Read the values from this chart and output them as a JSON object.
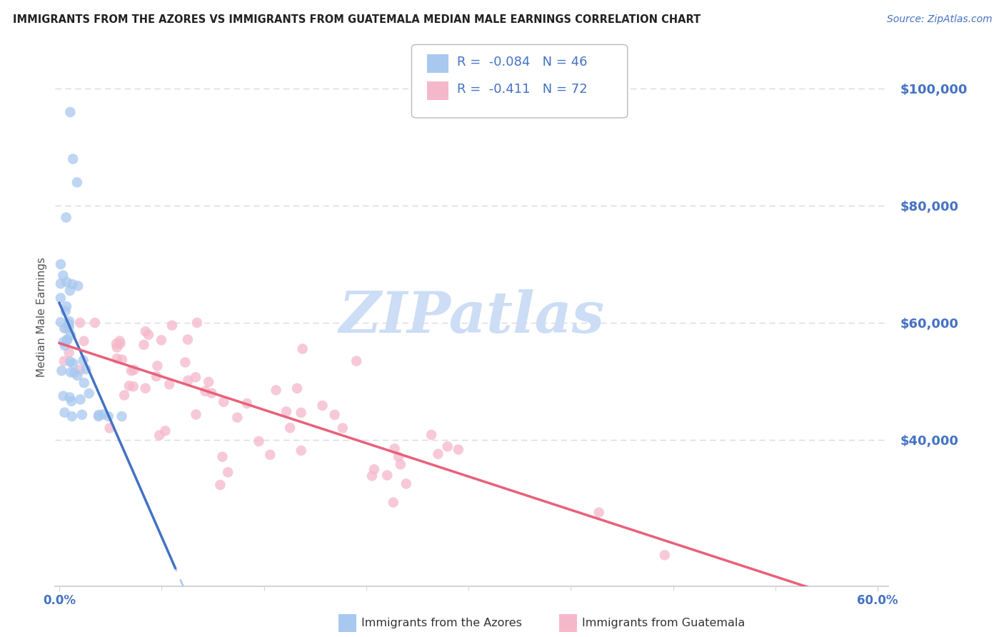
{
  "title": "IMMIGRANTS FROM THE AZORES VS IMMIGRANTS FROM GUATEMALA MEDIAN MALE EARNINGS CORRELATION CHART",
  "source": "Source: ZipAtlas.com",
  "ylabel": "Median Male Earnings",
  "legend_azores_R": "-0.084",
  "legend_azores_N": "46",
  "legend_guatemala_R": "-0.411",
  "legend_guatemala_N": "72",
  "legend_label_azores": "Immigrants from the Azores",
  "legend_label_guatemala": "Immigrants from Guatemala",
  "azores_color": "#a8c8f0",
  "guatemala_color": "#f5b8cb",
  "azores_line_color": "#4472c4",
  "guatemala_line_color": "#e8607a",
  "trendline_dash_color": "#a8c8f0",
  "yticks": [
    40000,
    60000,
    80000,
    100000
  ],
  "ytick_labels": [
    "$40,000",
    "$60,000",
    "$80,000",
    "$100,000"
  ],
  "background_color": "#ffffff",
  "watermark_text": "ZIPatlas",
  "watermark_color": "#ccddf5",
  "title_color": "#222222",
  "source_color": "#4472c4",
  "ylabel_color": "#555555",
  "xtick_color": "#4472c4",
  "ytick_color": "#4472c4",
  "grid_color": "#d8d8e8",
  "spine_color": "#cccccc",
  "legend_text_color": "#1a1a1a",
  "legend_num_color": "#4472c4"
}
